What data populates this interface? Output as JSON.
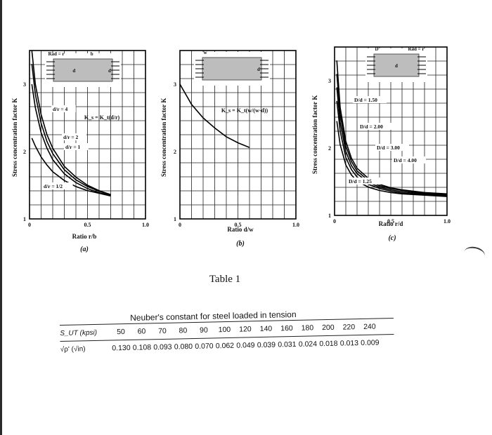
{
  "charts": [
    {
      "id": "a",
      "caption": "(a)",
      "ylabel": "Stress concentration factor K",
      "xlabel": "Ratio r/b",
      "yticks": [
        "1",
        "2",
        "3"
      ],
      "xticks": [
        "0",
        "0.5",
        "1.0"
      ],
      "formula": "K_s = K_t(d/r)",
      "inset_labels": [
        "Rad = r",
        "d",
        "b",
        "d"
      ],
      "annotations": [
        "d/r = 4",
        "d/r = 2",
        "d/r = 1",
        "d/r = 1/2"
      ]
    },
    {
      "id": "b",
      "caption": "(b)",
      "ylabel": "Stress concentration factor K",
      "xlabel": "Ratio d/w",
      "yticks": [
        "1",
        "2",
        "3"
      ],
      "xticks": [
        "0",
        "0.5",
        "1.0"
      ],
      "formula": "K_s = K_t(w/(w-d))",
      "inset_labels": [
        "w",
        "d"
      ],
      "annotations": []
    },
    {
      "id": "c",
      "caption": "(c)",
      "ylabel": "Stress concentration factor K",
      "xlabel": "Ratio r/d",
      "yticks": [
        "1",
        "2",
        "3"
      ],
      "xticks": [
        "0",
        "0.5",
        "1.0"
      ],
      "formula": "",
      "inset_labels": [
        "D",
        "d",
        "Rad = r"
      ],
      "annotations": [
        "D/d = 1.50",
        "D/d = 2.00",
        "D/d = 3.00",
        "D/d = 4.00",
        "D/d = 1.25"
      ]
    }
  ],
  "chart_data": [
    {
      "type": "line",
      "xlim": [
        0,
        1.0
      ],
      "ylim": [
        1,
        3.5
      ],
      "grid": true,
      "series": [
        {
          "name": "d/r = 4",
          "x": [
            0.02,
            0.05,
            0.1,
            0.15,
            0.2,
            0.3,
            0.4,
            0.5,
            0.6,
            0.7
          ],
          "y": [
            3.5,
            3.0,
            2.55,
            2.25,
            2.05,
            1.78,
            1.62,
            1.5,
            1.42,
            1.36
          ]
        },
        {
          "name": "d/r = 2",
          "x": [
            0.02,
            0.05,
            0.1,
            0.15,
            0.2,
            0.3,
            0.4,
            0.5,
            0.6,
            0.7
          ],
          "y": [
            3.3,
            2.85,
            2.42,
            2.15,
            1.97,
            1.73,
            1.58,
            1.48,
            1.41,
            1.36
          ]
        },
        {
          "name": "d/r = 1",
          "x": [
            0.02,
            0.05,
            0.1,
            0.15,
            0.2,
            0.3,
            0.4,
            0.5,
            0.6,
            0.7
          ],
          "y": [
            3.0,
            2.65,
            2.28,
            2.05,
            1.88,
            1.67,
            1.54,
            1.45,
            1.39,
            1.35
          ]
        },
        {
          "name": "d/r = 1/2",
          "x": [
            0.02,
            0.05,
            0.1,
            0.15,
            0.2,
            0.3,
            0.4,
            0.5,
            0.6,
            0.7
          ],
          "y": [
            2.2,
            2.08,
            1.92,
            1.8,
            1.7,
            1.57,
            1.48,
            1.42,
            1.38,
            1.34
          ]
        }
      ]
    },
    {
      "type": "line",
      "xlim": [
        0,
        1.0
      ],
      "ylim": [
        1,
        3.5
      ],
      "grid": true,
      "series": [
        {
          "name": "",
          "x": [
            0.0,
            0.1,
            0.2,
            0.3,
            0.4,
            0.5,
            0.6
          ],
          "y": [
            3.0,
            2.7,
            2.5,
            2.35,
            2.22,
            2.13,
            2.06
          ]
        }
      ]
    },
    {
      "type": "line",
      "xlim": [
        0,
        1.0
      ],
      "ylim": [
        1,
        3.5
      ],
      "grid": true,
      "series": [
        {
          "name": "D/d = 4.00",
          "x": [
            0.02,
            0.05,
            0.1,
            0.15,
            0.2,
            0.3,
            0.4,
            0.5,
            0.6,
            0.8,
            1.0
          ],
          "y": [
            3.3,
            2.6,
            2.1,
            1.85,
            1.7,
            1.55,
            1.46,
            1.41,
            1.38,
            1.34,
            1.32
          ]
        },
        {
          "name": "D/d = 3.00",
          "x": [
            0.02,
            0.05,
            0.1,
            0.15,
            0.2,
            0.3,
            0.4,
            0.5,
            0.6,
            0.8,
            1.0
          ],
          "y": [
            3.1,
            2.5,
            2.03,
            1.8,
            1.66,
            1.52,
            1.44,
            1.4,
            1.37,
            1.33,
            1.31
          ]
        },
        {
          "name": "D/d = 2.00",
          "x": [
            0.02,
            0.05,
            0.1,
            0.15,
            0.2,
            0.3,
            0.4,
            0.5,
            0.6,
            0.8,
            1.0
          ],
          "y": [
            2.9,
            2.38,
            1.95,
            1.74,
            1.62,
            1.49,
            1.42,
            1.38,
            1.35,
            1.32,
            1.3
          ]
        },
        {
          "name": "D/d = 1.50",
          "x": [
            0.02,
            0.05,
            0.1,
            0.15,
            0.2,
            0.3,
            0.4,
            0.5,
            0.6,
            0.8,
            1.0
          ],
          "y": [
            2.7,
            2.25,
            1.86,
            1.68,
            1.57,
            1.46,
            1.4,
            1.36,
            1.33,
            1.31,
            1.29
          ]
        },
        {
          "name": "D/d = 1.25",
          "x": [
            0.02,
            0.05,
            0.1,
            0.15,
            0.2,
            0.3,
            0.4,
            0.5,
            0.6,
            0.8,
            1.0
          ],
          "y": [
            2.4,
            2.05,
            1.75,
            1.6,
            1.51,
            1.42,
            1.37,
            1.34,
            1.32,
            1.3,
            1.28
          ]
        }
      ]
    }
  ],
  "table": {
    "title": "Table 1",
    "subtitle": "Neuber's constant for steel loaded in tension",
    "row1_head": "S_UT (kpsi)",
    "row2_head": "√ρ' (√in)",
    "sut": [
      "50",
      "60",
      "70",
      "80",
      "90",
      "100",
      "120",
      "140",
      "160",
      "180",
      "200",
      "220",
      "240"
    ],
    "rho": [
      "0.130",
      "0.108",
      "0.093",
      "0.080",
      "0.070",
      "0.062",
      "0.049",
      "0.039",
      "0.031",
      "0.024",
      "0.018",
      "0.013",
      "0.009"
    ]
  }
}
